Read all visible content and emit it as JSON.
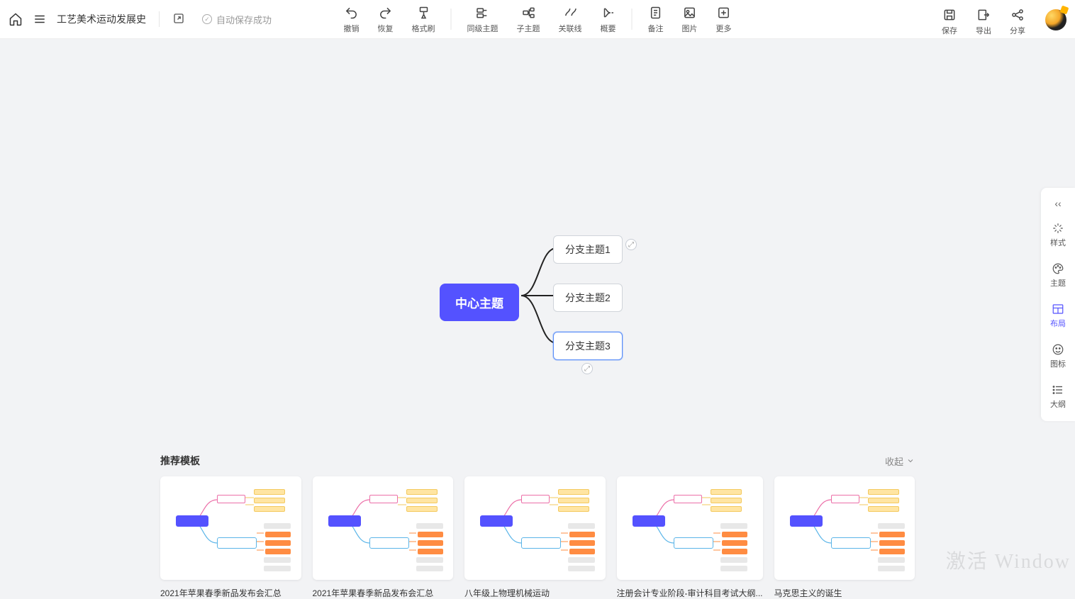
{
  "header": {
    "doc_title": "工艺美术运动发展史",
    "autosave": "自动保存成功"
  },
  "toolbar": {
    "undo": "撤销",
    "redo": "恢复",
    "format": "格式刷",
    "peer": "同级主题",
    "child": "子主题",
    "link": "关联线",
    "summary": "概要",
    "note": "备注",
    "image": "图片",
    "more": "更多",
    "save": "保存",
    "export": "导出",
    "share": "分享"
  },
  "mindmap": {
    "type": "mindmap",
    "center": {
      "label": "中心主题",
      "bg": "#5452ff",
      "fg": "#ffffff"
    },
    "branches": [
      {
        "label": "分支主题1",
        "selected": false
      },
      {
        "label": "分支主题2",
        "selected": false
      },
      {
        "label": "分支主题3",
        "selected": true
      }
    ],
    "link_stroke": "#222222",
    "link_width": 2,
    "node_bg": "#ffffff",
    "node_border": "#d0d4da",
    "selected_border": "#5b8ff9"
  },
  "side": {
    "items": [
      {
        "key": "style",
        "label": "样式"
      },
      {
        "key": "theme",
        "label": "主题"
      },
      {
        "key": "layout",
        "label": "布局",
        "active": true
      },
      {
        "key": "icon",
        "label": "图标"
      },
      {
        "key": "outline",
        "label": "大纲"
      }
    ]
  },
  "templates": {
    "title": "推荐模板",
    "collapse": "收起",
    "items": [
      {
        "name": "2021年苹果春季新品发布会汇总"
      },
      {
        "name": "2021年苹果春季新品发布会汇总"
      },
      {
        "name": "八年级上物理机械运动"
      },
      {
        "name": "注册会计专业阶段-审计科目考试大纲..."
      },
      {
        "name": "马克思主义的诞生"
      }
    ]
  },
  "watermark": "激活 Window"
}
